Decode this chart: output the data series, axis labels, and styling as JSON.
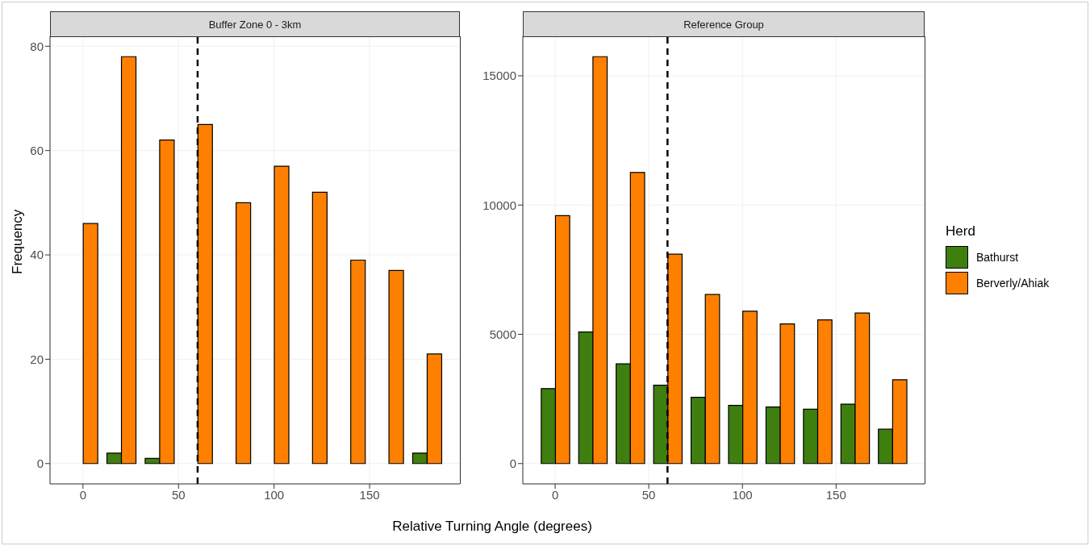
{
  "chart_data": [
    {
      "type": "bar",
      "title": "Buffer Zone 0 - 3km",
      "xlabel": "Relative Turning Angle (degrees)",
      "ylabel": "Frequency",
      "x": [
        0,
        20,
        40,
        60,
        80,
        100,
        120,
        140,
        160,
        180
      ],
      "series": [
        {
          "color": "#3f7f0f",
          "values": [
            0,
            2,
            1,
            0,
            0,
            0,
            0,
            0,
            0,
            2
          ]
        },
        {
          "color": "#ff8000",
          "values": [
            46,
            78,
            62,
            65,
            50,
            57,
            52,
            39,
            37,
            21
          ]
        }
      ],
      "xlim": [
        -17.25,
        197.25
      ],
      "xticks": [
        0,
        50,
        100,
        150
      ],
      "ylim": [
        -3.9,
        81.9
      ],
      "yticks": [
        0,
        20,
        40,
        60,
        80
      ],
      "grid": true,
      "ref_lines": [
        {
          "axis": "x",
          "value": 60,
          "color": "#000000",
          "line_style": "dashed"
        }
      ]
    },
    {
      "type": "bar",
      "title": "Reference Group",
      "legend_title": "Herd",
      "legend": "right",
      "x": [
        0,
        20,
        40,
        60,
        80,
        100,
        120,
        140,
        160,
        180
      ],
      "series": [
        {
          "name": "Bathurst",
          "color": "#3f7f0f",
          "values": [
            2900,
            5090,
            3860,
            3030,
            2560,
            2250,
            2190,
            2100,
            2300,
            1330
          ]
        },
        {
          "name": "Berverly/Ahiak",
          "color": "#ff8000",
          "values": [
            9590,
            15740,
            11260,
            8100,
            6540,
            5890,
            5400,
            5560,
            5820,
            3240
          ]
        }
      ],
      "xlim": [
        -17.25,
        197.25
      ],
      "xticks": [
        0,
        50,
        100,
        150
      ],
      "ylim": [
        -787,
        16527
      ],
      "yticks": [
        0,
        5000,
        10000,
        15000
      ],
      "grid": true,
      "ref_lines": [
        {
          "axis": "x",
          "value": 60,
          "color": "#000000",
          "line_style": "dashed"
        }
      ]
    }
  ]
}
